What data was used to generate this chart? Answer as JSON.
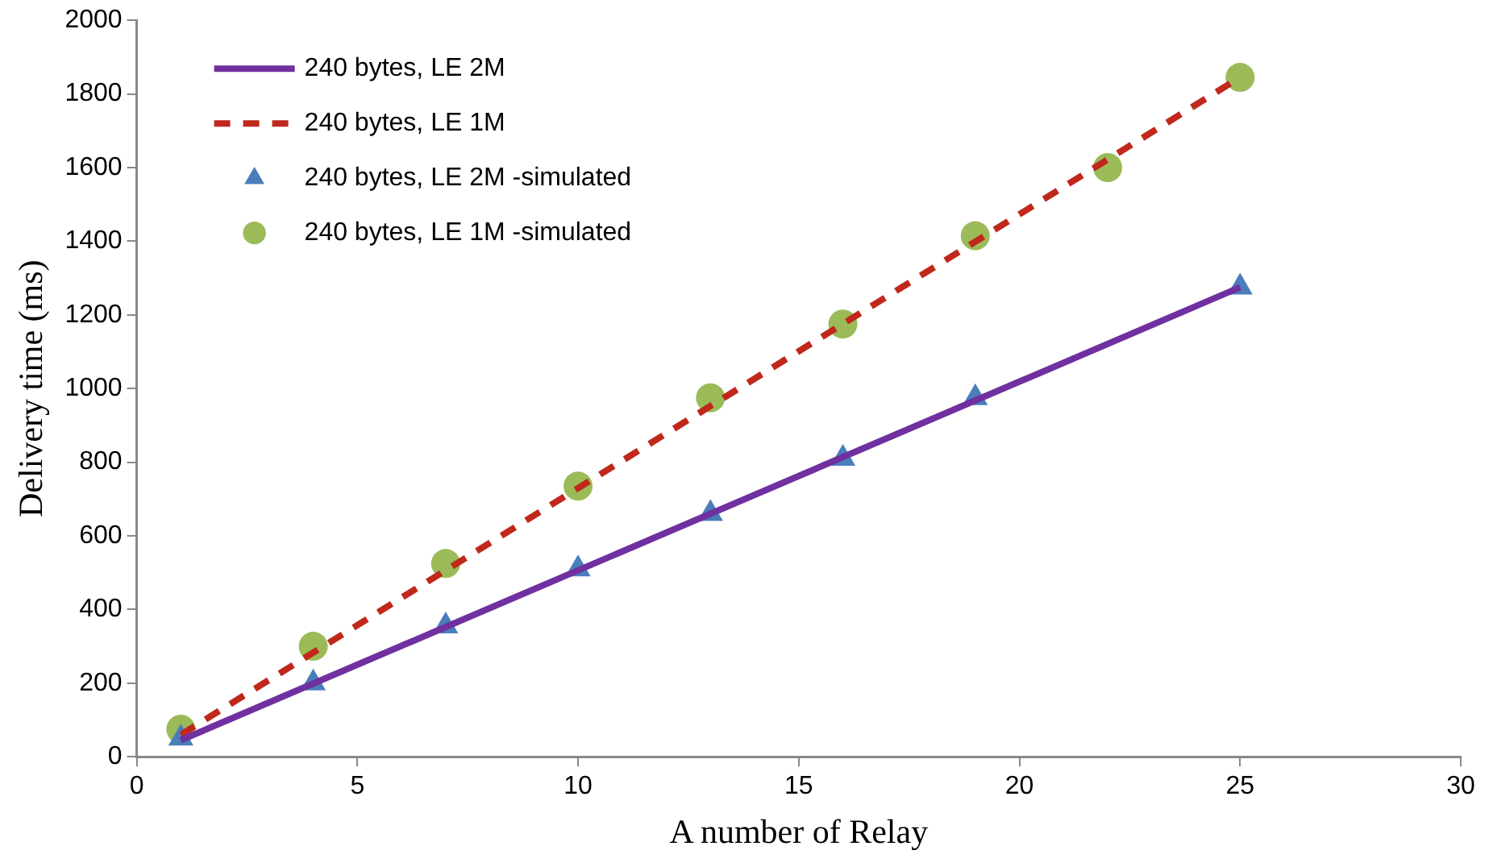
{
  "chart_data": {
    "type": "line",
    "xlabel": "A number of Relay",
    "ylabel": "Delivery time (ms)",
    "xlim": [
      0,
      30
    ],
    "xticks": [
      0,
      5,
      10,
      15,
      20,
      25,
      30
    ],
    "ylim": [
      0,
      2000
    ],
    "yticks": [
      0,
      200,
      400,
      600,
      800,
      1000,
      1200,
      1400,
      1600,
      1800,
      2000
    ],
    "grid": false,
    "legend": "top left",
    "series": [
      {
        "name": "240 bytes, LE 2M",
        "color": "#7030a0",
        "line_style": "solid",
        "marker": "none",
        "x": [
          1,
          25
        ],
        "values": [
          45,
          1275
        ]
      },
      {
        "name": "240 bytes, LE 1M",
        "color": "#c0281c",
        "line_style": "dashed",
        "marker": "none",
        "x": [
          1,
          25
        ],
        "values": [
          60,
          1845
        ]
      },
      {
        "name": "240 bytes, LE 2M -simulated",
        "type": "scatter",
        "color": "#4a7ebb",
        "marker": "triangle",
        "x": [
          1,
          4,
          7,
          10,
          13,
          16,
          19,
          25
        ],
        "values": [
          50,
          200,
          355,
          510,
          660,
          810,
          975,
          1275
        ]
      },
      {
        "name": "240 bytes, LE 1M -simulated",
        "type": "scatter",
        "color": "#9bbb59",
        "marker": "circle",
        "x": [
          1,
          4,
          7,
          10,
          13,
          16,
          19,
          22,
          25
        ],
        "values": [
          75,
          300,
          525,
          735,
          975,
          1175,
          1415,
          1600,
          1845
        ]
      }
    ]
  }
}
